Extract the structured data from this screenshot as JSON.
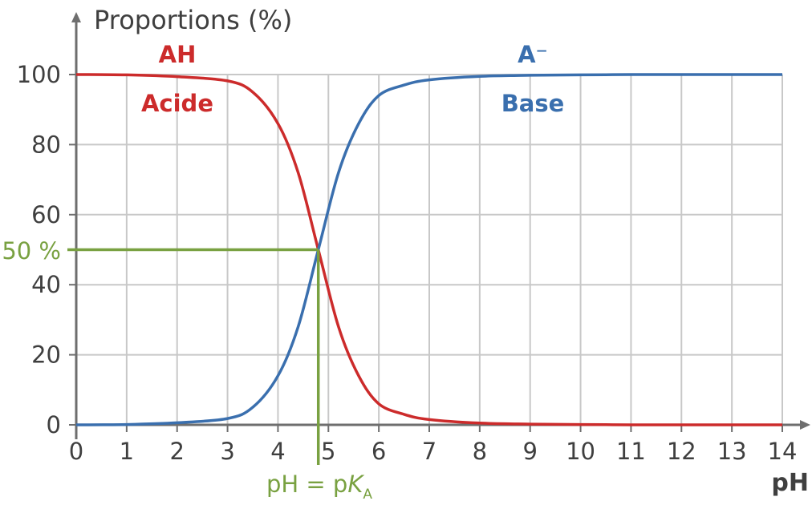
{
  "chart_data": {
    "type": "line",
    "ylabel": "Proportions (%)",
    "xlabel": "pH",
    "xlim": [
      0,
      14
    ],
    "ylim": [
      0,
      100
    ],
    "x_ticks": [
      0,
      1,
      2,
      3,
      4,
      5,
      6,
      7,
      8,
      9,
      10,
      11,
      12,
      13,
      14
    ],
    "y_ticks": [
      0,
      20,
      40,
      60,
      80,
      100
    ],
    "grid": true,
    "pKa": 4.8,
    "series": [
      {
        "name": "AH",
        "color": "#cc2b2b",
        "label_formula": "AH",
        "label_name": "Acide",
        "x": [
          0,
          1,
          2,
          3,
          3.5,
          4,
          4.4,
          4.8,
          5.2,
          5.6,
          6,
          6.5,
          7,
          8,
          9,
          10,
          11,
          12,
          13,
          14
        ],
        "y": [
          100,
          99.9,
          99.4,
          98.2,
          95,
          86,
          72,
          50,
          28,
          14,
          6,
          3,
          1.5,
          0.5,
          0.2,
          0.1,
          0,
          0,
          0,
          0
        ]
      },
      {
        "name": "A⁻",
        "color": "#3a6fae",
        "label_formula": "A⁻",
        "label_name": "Base",
        "x": [
          0,
          1,
          2,
          3,
          3.5,
          4,
          4.4,
          4.8,
          5.2,
          5.6,
          6,
          6.5,
          7,
          8,
          9,
          10,
          11,
          12,
          13,
          14
        ],
        "y": [
          0,
          0.1,
          0.6,
          1.8,
          5,
          14,
          28,
          50,
          72,
          86,
          94,
          97,
          98.5,
          99.5,
          99.8,
          99.9,
          100,
          100,
          100,
          100
        ]
      }
    ],
    "annotations": {
      "half_label": "50 %",
      "equivalence_prefix": "pH = p",
      "equivalence_k": "K",
      "equivalence_sub": "A",
      "half_value": 50,
      "color": "#79a141"
    },
    "colors": {
      "axis": "#6e6e6e",
      "grid": "#c8c8c8",
      "text": "#3f3f3f"
    }
  }
}
